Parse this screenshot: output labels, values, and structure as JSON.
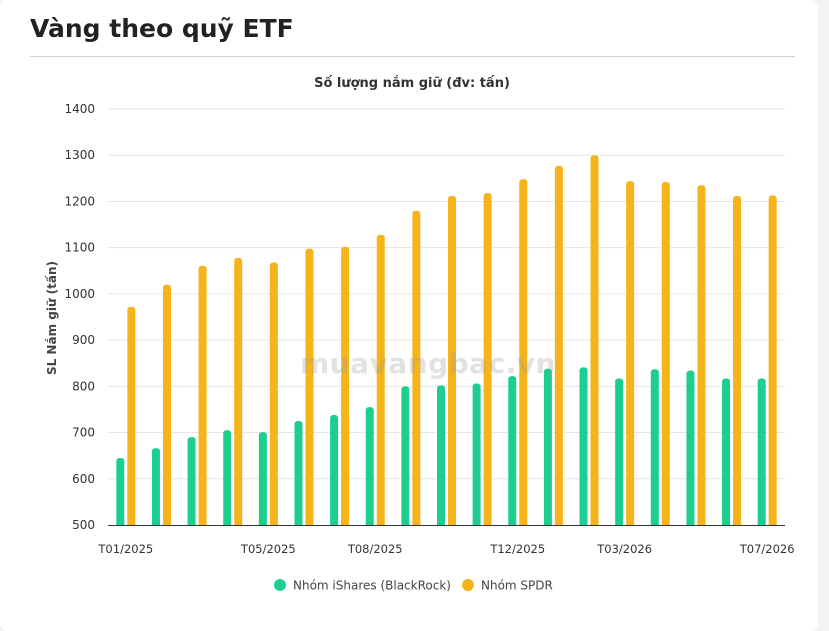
{
  "page": {
    "title": "Vàng theo quỹ ETF",
    "watermark": "muavangbac.vn"
  },
  "colors": {
    "ishares": "#1ccf8f",
    "spdr": "#f6b41c",
    "grid": "#e6e6e6",
    "axis": "#333333",
    "text": "#333333"
  },
  "chart_data": {
    "type": "bar",
    "title": "Số lượng nắm giữ (đv: tấn)",
    "xlabel": "",
    "ylabel": "SL Nắm giữ (tấn)",
    "ylim": [
      500,
      1400
    ],
    "yticks": [
      500,
      600,
      700,
      800,
      900,
      1000,
      1100,
      1200,
      1300,
      1400
    ],
    "grid": true,
    "legend_position": "bottom",
    "categories": [
      "T01/2025",
      "T02/2025",
      "T03/2025",
      "T04/2025",
      "T05/2025",
      "T06/2025",
      "T07/2025",
      "T08/2025",
      "T09/2025",
      "T10/2025",
      "T11/2025",
      "T12/2025",
      "T01/2026",
      "T02/2026",
      "T03/2026",
      "T04/2026",
      "T05/2026",
      "T06/2026",
      "T07/2026"
    ],
    "tick_labels_shown": [
      "T01/2025",
      "",
      "",
      "",
      "T05/2025",
      "",
      "",
      "T08/2025",
      "",
      "",
      "",
      "T12/2025",
      "",
      "",
      "T03/2026",
      "",
      "",
      "",
      "T07/2026"
    ],
    "series": [
      {
        "name": "Nhóm iShares (BlackRock)",
        "values": [
          645,
          666,
          690,
          705,
          701,
          725,
          738,
          755,
          800,
          802,
          806,
          822,
          838,
          841,
          817,
          837,
          834,
          817,
          817
        ]
      },
      {
        "name": "Nhóm SPDR",
        "values": [
          972,
          1020,
          1061,
          1078,
          1068,
          1098,
          1102,
          1128,
          1180,
          1212,
          1218,
          1248,
          1277,
          1300,
          1244,
          1242,
          1235,
          1212,
          1213
        ]
      }
    ]
  }
}
